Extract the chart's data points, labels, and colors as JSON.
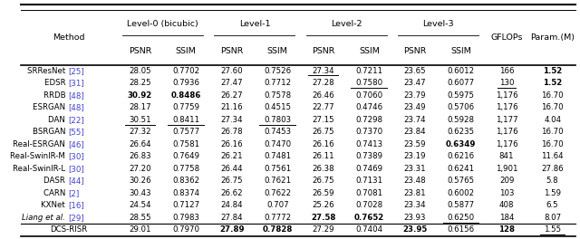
{
  "figsize": [
    6.4,
    2.64
  ],
  "dpi": 100,
  "blue_color": "#4040cc",
  "rows": [
    {
      "method": "SRResNet",
      "ref": "[25]",
      "values": [
        "28.05",
        "0.7702",
        "27.60",
        "0.7526",
        "27.34",
        "0.7211",
        "23.65",
        "0.6012",
        "166",
        "1.52"
      ],
      "bold": [
        false,
        false,
        false,
        false,
        false,
        false,
        false,
        false,
        false,
        true
      ],
      "underline": [
        false,
        false,
        false,
        false,
        true,
        false,
        false,
        false,
        false,
        false
      ],
      "italic_method": false,
      "is_last": false
    },
    {
      "method": "EDSR",
      "ref": "[31]",
      "values": [
        "28.25",
        "0.7936",
        "27.47",
        "0.7712",
        "27.28",
        "0.7580",
        "23.47",
        "0.6077",
        "130",
        "1.52"
      ],
      "bold": [
        false,
        false,
        false,
        false,
        false,
        false,
        false,
        false,
        false,
        true
      ],
      "underline": [
        false,
        false,
        false,
        false,
        false,
        true,
        false,
        false,
        true,
        false
      ],
      "italic_method": false,
      "is_last": false
    },
    {
      "method": "RRDB",
      "ref": "[48]",
      "values": [
        "30.92",
        "0.8486",
        "26.27",
        "0.7578",
        "26.46",
        "0.7060",
        "23.79",
        "0.5975",
        "1,176",
        "16.70"
      ],
      "bold": [
        true,
        true,
        false,
        false,
        false,
        false,
        false,
        false,
        false,
        false
      ],
      "underline": [
        false,
        false,
        false,
        false,
        false,
        false,
        false,
        false,
        false,
        false
      ],
      "italic_method": false,
      "is_last": false
    },
    {
      "method": "ESRGAN",
      "ref": "[48]",
      "values": [
        "28.17",
        "0.7759",
        "21.16",
        "0.4515",
        "22.77",
        "0.4746",
        "23.49",
        "0.5706",
        "1,176",
        "16.70"
      ],
      "bold": [
        false,
        false,
        false,
        false,
        false,
        false,
        false,
        false,
        false,
        false
      ],
      "underline": [
        false,
        false,
        false,
        false,
        false,
        false,
        false,
        false,
        false,
        false
      ],
      "italic_method": false,
      "is_last": false
    },
    {
      "method": "DAN",
      "ref": "[22]",
      "values": [
        "30.51",
        "0.8411",
        "27.34",
        "0.7803",
        "27.15",
        "0.7298",
        "23.74",
        "0.5928",
        "1,177",
        "4.04"
      ],
      "bold": [
        false,
        false,
        false,
        false,
        false,
        false,
        false,
        false,
        false,
        false
      ],
      "underline": [
        true,
        true,
        false,
        true,
        false,
        false,
        false,
        false,
        false,
        false
      ],
      "italic_method": false,
      "is_last": false
    },
    {
      "method": "BSRGAN",
      "ref": "[55]",
      "values": [
        "27.32",
        "0.7577",
        "26.78",
        "0.7453",
        "26.75",
        "0.7370",
        "23.84",
        "0.6235",
        "1,176",
        "16.70"
      ],
      "bold": [
        false,
        false,
        false,
        false,
        false,
        false,
        false,
        false,
        false,
        false
      ],
      "underline": [
        false,
        false,
        false,
        false,
        false,
        false,
        false,
        false,
        false,
        false
      ],
      "italic_method": false,
      "is_last": false
    },
    {
      "method": "Real-ESRGAN",
      "ref": "[46]",
      "values": [
        "26.64",
        "0.7581",
        "26.16",
        "0.7470",
        "26.16",
        "0.7413",
        "23.59",
        "0.6349",
        "1,176",
        "16.70"
      ],
      "bold": [
        false,
        false,
        false,
        false,
        false,
        false,
        false,
        true,
        false,
        false
      ],
      "underline": [
        false,
        false,
        false,
        false,
        false,
        false,
        false,
        false,
        false,
        false
      ],
      "italic_method": false,
      "is_last": false
    },
    {
      "method": "Real-SwinIR-M",
      "ref": "[30]",
      "values": [
        "26.83",
        "0.7649",
        "26.21",
        "0.7481",
        "26.11",
        "0.7389",
        "23.19",
        "0.6216",
        "841",
        "11.64"
      ],
      "bold": [
        false,
        false,
        false,
        false,
        false,
        false,
        false,
        false,
        false,
        false
      ],
      "underline": [
        false,
        false,
        false,
        false,
        false,
        false,
        false,
        false,
        false,
        false
      ],
      "italic_method": false,
      "is_last": false
    },
    {
      "method": "Real-SwinIR-L",
      "ref": "[30]",
      "values": [
        "27.20",
        "0.7758",
        "26.44",
        "0.7561",
        "26.38",
        "0.7469",
        "23.31",
        "0.6241",
        "1,901",
        "27.86"
      ],
      "bold": [
        false,
        false,
        false,
        false,
        false,
        false,
        false,
        false,
        false,
        false
      ],
      "underline": [
        false,
        false,
        false,
        false,
        false,
        false,
        false,
        false,
        false,
        false
      ],
      "italic_method": false,
      "is_last": false
    },
    {
      "method": "DASR",
      "ref": "[44]",
      "values": [
        "30.26",
        "0.8362",
        "26.75",
        "0.7621",
        "26.75",
        "0.7131",
        "23.48",
        "0.5765",
        "209",
        "5.8"
      ],
      "bold": [
        false,
        false,
        false,
        false,
        false,
        false,
        false,
        false,
        false,
        false
      ],
      "underline": [
        false,
        false,
        false,
        false,
        false,
        false,
        false,
        false,
        false,
        false
      ],
      "italic_method": false,
      "is_last": false
    },
    {
      "method": "CARN",
      "ref": "[2]",
      "values": [
        "30.43",
        "0.8374",
        "26.62",
        "0.7622",
        "26.59",
        "0.7081",
        "23.81",
        "0.6002",
        "103",
        "1.59"
      ],
      "bold": [
        false,
        false,
        false,
        false,
        false,
        false,
        false,
        false,
        false,
        false
      ],
      "underline": [
        false,
        false,
        false,
        false,
        false,
        false,
        false,
        false,
        false,
        false
      ],
      "italic_method": false,
      "is_last": false
    },
    {
      "method": "KXNet",
      "ref": "[16]",
      "values": [
        "24.54",
        "0.7127",
        "24.84",
        "0.707",
        "25.26",
        "0.7028",
        "23.34",
        "0.5877",
        "408",
        "6.5"
      ],
      "bold": [
        false,
        false,
        false,
        false,
        false,
        false,
        false,
        false,
        false,
        false
      ],
      "underline": [
        false,
        false,
        false,
        false,
        false,
        false,
        false,
        false,
        false,
        false
      ],
      "italic_method": false,
      "is_last": false
    },
    {
      "method": "Liang et al.",
      "ref": "[29]",
      "values": [
        "28.55",
        "0.7983",
        "27.84",
        "0.7772",
        "27.58",
        "0.7652",
        "23.93",
        "0.6250",
        "184",
        "8.07"
      ],
      "bold": [
        false,
        false,
        false,
        false,
        true,
        true,
        false,
        false,
        false,
        false
      ],
      "underline": [
        false,
        false,
        false,
        false,
        false,
        false,
        false,
        true,
        false,
        false
      ],
      "italic_method": true,
      "is_last": false
    },
    {
      "method": "DCS-RISR",
      "ref": "",
      "values": [
        "29.01",
        "0.7970",
        "27.89",
        "0.7828",
        "27.29",
        "0.7404",
        "23.95",
        "0.6156",
        "128",
        "1.55"
      ],
      "bold": [
        false,
        false,
        true,
        true,
        false,
        false,
        true,
        false,
        true,
        false
      ],
      "underline": [
        false,
        false,
        false,
        false,
        false,
        false,
        false,
        false,
        false,
        true
      ],
      "italic_method": false,
      "is_last": true
    }
  ]
}
